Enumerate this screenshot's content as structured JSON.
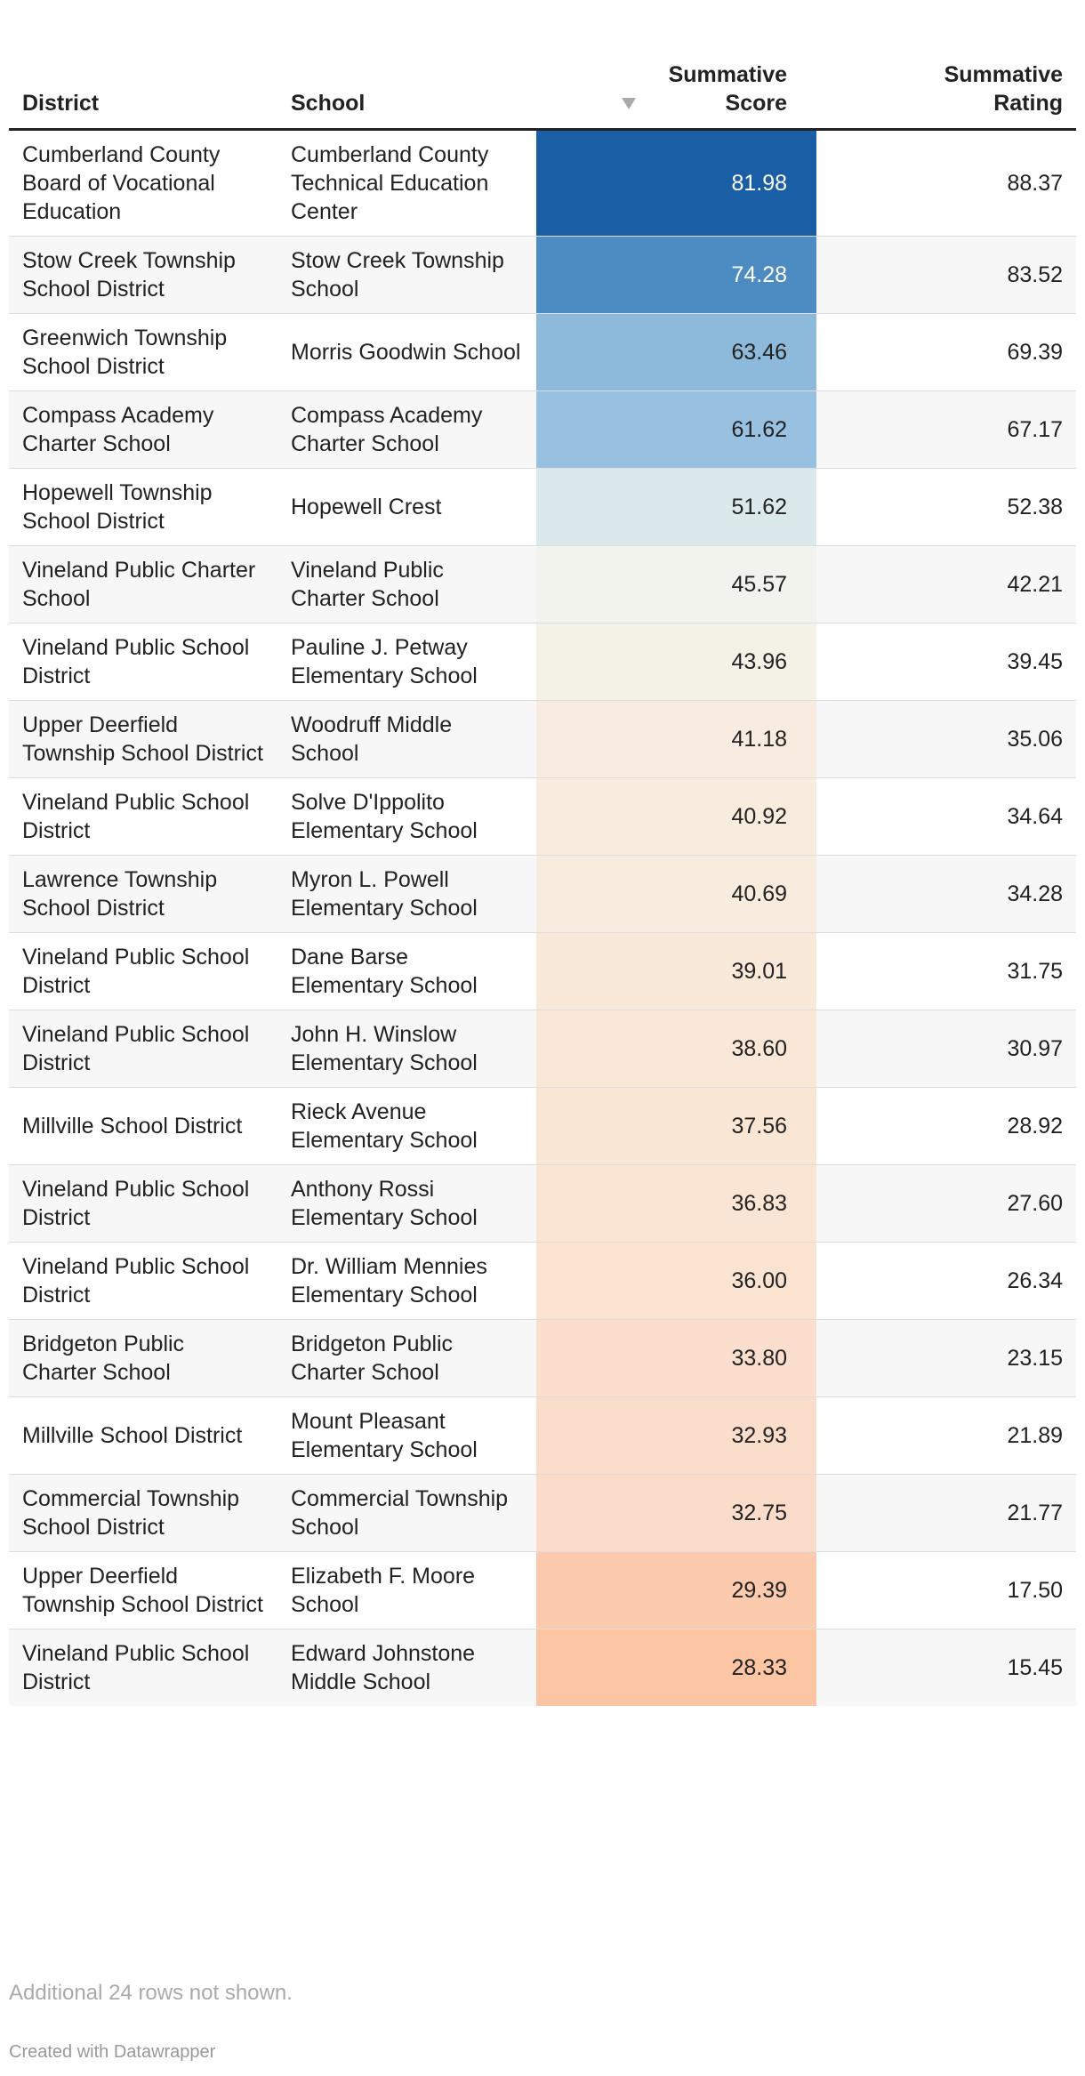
{
  "table": {
    "columns": [
      "District",
      "School",
      "Summative Score",
      "Summative Rating"
    ],
    "rows": [
      [
        "Cumberland County Board of Vocational Education",
        "Cumberland County Technical Education Center",
        "81.98",
        "88.37"
      ],
      [
        "Stow Creek Township School District",
        "Stow Creek Township School",
        "74.28",
        "83.52"
      ],
      [
        "Greenwich Township School District",
        "Morris Goodwin School",
        "63.46",
        "69.39"
      ],
      [
        "Compass Academy Charter School",
        "Compass Academy Charter School",
        "61.62",
        "67.17"
      ],
      [
        "Hopewell Township School District",
        "Hopewell Crest",
        "51.62",
        "52.38"
      ],
      [
        "Vineland Public Charter School",
        "Vineland Public Charter School",
        "45.57",
        "42.21"
      ],
      [
        "Vineland Public School District",
        "Pauline J. Petway Elementary School",
        "43.96",
        "39.45"
      ],
      [
        "Upper Deerfield Township School District",
        "Woodruff Middle School",
        "41.18",
        "35.06"
      ],
      [
        "Vineland Public School District",
        "Solve D'Ippolito Elementary School",
        "40.92",
        "34.64"
      ],
      [
        "Lawrence Township School District",
        "Myron L. Powell Elementary School",
        "40.69",
        "34.28"
      ],
      [
        "Vineland Public School District",
        "Dane Barse Elementary School",
        "39.01",
        "31.75"
      ],
      [
        "Vineland Public School District",
        "John H. Winslow Elementary School",
        "38.60",
        "30.97"
      ],
      [
        "Millville School District",
        "Rieck Avenue Elementary School",
        "37.56",
        "28.92"
      ],
      [
        "Vineland Public School District",
        "Anthony Rossi Elementary School",
        "36.83",
        "27.60"
      ],
      [
        "Vineland Public School District",
        "Dr. William Mennies Elementary School",
        "36.00",
        "26.34"
      ],
      [
        "Bridgeton Public Charter School",
        "Bridgeton Public Charter School",
        "33.80",
        "23.15"
      ],
      [
        "Millville School District",
        "Mount Pleasant Elementary School",
        "32.93",
        "21.89"
      ],
      [
        "Commercial Township School District",
        "Commercial Township School",
        "32.75",
        "21.77"
      ],
      [
        "Upper Deerfield Township School District",
        "Elizabeth F. Moore School",
        "29.39",
        "17.50"
      ],
      [
        "Vineland Public School District",
        "Edward Johnstone Middle School",
        "28.33",
        "15.45"
      ]
    ]
  },
  "footer": {
    "note": "Additional 24 rows not shown.",
    "credit": "Created with Datawrapper"
  }
}
